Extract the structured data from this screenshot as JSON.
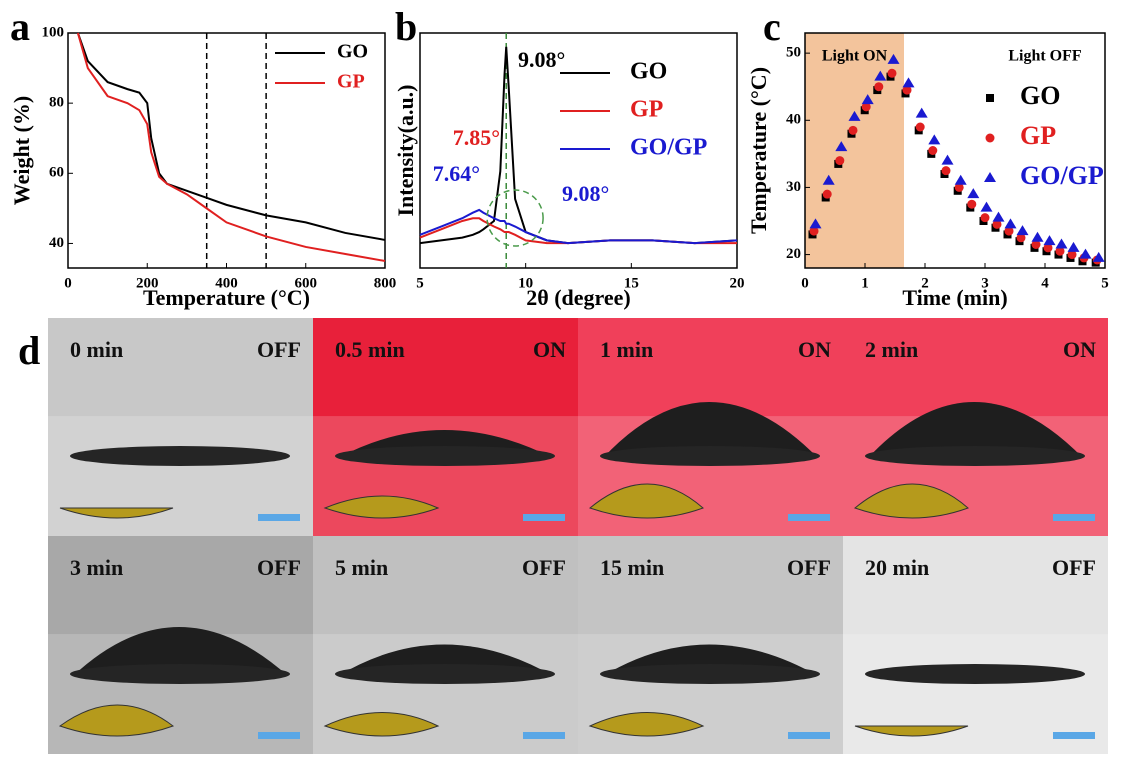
{
  "chart_data": [
    {
      "type": "line",
      "panel_label": "a",
      "x_label": "Temperature (°C)",
      "y_label": "Weight (%)",
      "x": [
        25,
        50,
        100,
        150,
        180,
        200,
        210,
        230,
        250,
        300,
        350,
        400,
        500,
        600,
        700,
        800
      ],
      "series": [
        {
          "name": "GO",
          "color": "#000000",
          "values": [
            100,
            92,
            86,
            84,
            83,
            80,
            70,
            60,
            57,
            55,
            53,
            51,
            48,
            46,
            43,
            41
          ]
        },
        {
          "name": "GP",
          "color": "#e02020",
          "values": [
            100,
            90,
            82,
            80,
            78,
            74,
            66,
            59,
            57,
            54,
            50,
            46,
            42,
            39,
            37,
            35
          ]
        }
      ],
      "xlim": [
        0,
        800
      ],
      "xticks": [
        0,
        200,
        400,
        600,
        800
      ],
      "ylim": [
        33,
        100
      ],
      "yticks": [
        40,
        60,
        80,
        100
      ],
      "vlines": [
        350,
        500
      ],
      "vline_color": "#000000"
    },
    {
      "type": "line",
      "panel_label": "b",
      "x_label": "2θ (degree)",
      "y_label": "Intensity(a.u.)",
      "x": [
        5,
        6,
        7,
        7.5,
        7.8,
        8,
        8.5,
        8.8,
        9,
        9.08,
        9.2,
        9.5,
        10,
        11,
        12,
        14,
        16,
        18,
        20
      ],
      "series": [
        {
          "name": "GO",
          "color": "#000000",
          "values": [
            24,
            25,
            26,
            27,
            28,
            29,
            32,
            50,
            85,
            95,
            80,
            40,
            28,
            25,
            24,
            25,
            25,
            24,
            25
          ]
        },
        {
          "name": "GP",
          "color": "#e02020",
          "values": [
            26,
            29,
            32,
            33,
            33,
            32,
            30,
            29,
            28,
            28,
            28,
            27,
            25,
            24,
            24,
            25,
            25,
            24,
            24
          ]
        },
        {
          "name": "GO/GP",
          "color": "#1a1ad0",
          "values": [
            27,
            30,
            33,
            35,
            36,
            35,
            33,
            32,
            32,
            31,
            31,
            30,
            28,
            25,
            24,
            25,
            25,
            24,
            25
          ]
        }
      ],
      "xlim": [
        5,
        20
      ],
      "xticks": [
        5,
        10,
        15,
        20
      ],
      "ylim": [
        15,
        100
      ],
      "vlines": [
        9.08
      ],
      "vline_color": "#3a8a3a",
      "annotations": [
        {
          "text": "9.08°",
          "color": "#000000"
        },
        {
          "text": "7.85°",
          "color": "#e02020"
        },
        {
          "text": "7.64°",
          "color": "#1a1ad0"
        },
        {
          "text": "9.08°",
          "color": "#1a1ad0"
        }
      ]
    },
    {
      "type": "scatter",
      "panel_label": "c",
      "x_label": "Time (min)",
      "y_label": "Temperature (°C)",
      "legend_title": "Light OFF",
      "shaded_region": {
        "label": "Light ON",
        "x": [
          0,
          1.65
        ],
        "color": "#f3c49c"
      },
      "x": [
        0.15,
        0.37,
        0.58,
        0.8,
        1.02,
        1.23,
        1.45,
        1.7,
        1.92,
        2.13,
        2.35,
        2.57,
        2.78,
        3.0,
        3.2,
        3.4,
        3.6,
        3.85,
        4.05,
        4.25,
        4.45,
        4.65,
        4.87
      ],
      "series": [
        {
          "name": "GO",
          "color": "#000000",
          "marker": "square",
          "values": [
            23,
            28.5,
            33.5,
            38,
            41.5,
            44.5,
            46.5,
            44,
            38.5,
            35,
            32,
            29.5,
            27,
            25,
            24,
            23,
            22,
            21,
            20.5,
            20,
            19.5,
            19,
            18.8
          ]
        },
        {
          "name": "GP",
          "color": "#e02020",
          "marker": "circle",
          "values": [
            23.5,
            29,
            34,
            38.5,
            42,
            45,
            47,
            44.5,
            39,
            35.5,
            32.5,
            30,
            27.5,
            25.5,
            24.5,
            23.5,
            22.5,
            21.5,
            21,
            20.5,
            20,
            19.5,
            19.2
          ]
        },
        {
          "name": "GO/GP",
          "color": "#1a1ad0",
          "marker": "triangle",
          "values": [
            24.5,
            31,
            36,
            40.5,
            43,
            46.5,
            49,
            45.5,
            41,
            37,
            34,
            31,
            29,
            27,
            25.5,
            24.5,
            23.5,
            22.5,
            22,
            21.5,
            21,
            20,
            19.5
          ]
        }
      ],
      "xlim": [
        0,
        5
      ],
      "xticks": [
        0,
        1,
        2,
        3,
        4,
        5
      ],
      "ylim": [
        18,
        53
      ],
      "yticks": [
        20,
        30,
        40,
        50
      ]
    }
  ],
  "panel_d": {
    "label": "d",
    "frames": [
      {
        "time": "0 min",
        "state": "OFF",
        "background": "#c8c8c8"
      },
      {
        "time": "0.5 min",
        "state": "ON",
        "background": "#e8203a"
      },
      {
        "time": "1 min",
        "state": "ON",
        "background": "#f0405a"
      },
      {
        "time": "2 min",
        "state": "ON",
        "background": "#f0405a"
      },
      {
        "time": "3 min",
        "state": "OFF",
        "background": "#a8a8a8"
      },
      {
        "time": "5 min",
        "state": "OFF",
        "background": "#c0c0c0"
      },
      {
        "time": "15 min",
        "state": "OFF",
        "background": "#c4c4c4"
      },
      {
        "time": "20 min",
        "state": "OFF",
        "background": "#e4e4e4"
      }
    ]
  }
}
